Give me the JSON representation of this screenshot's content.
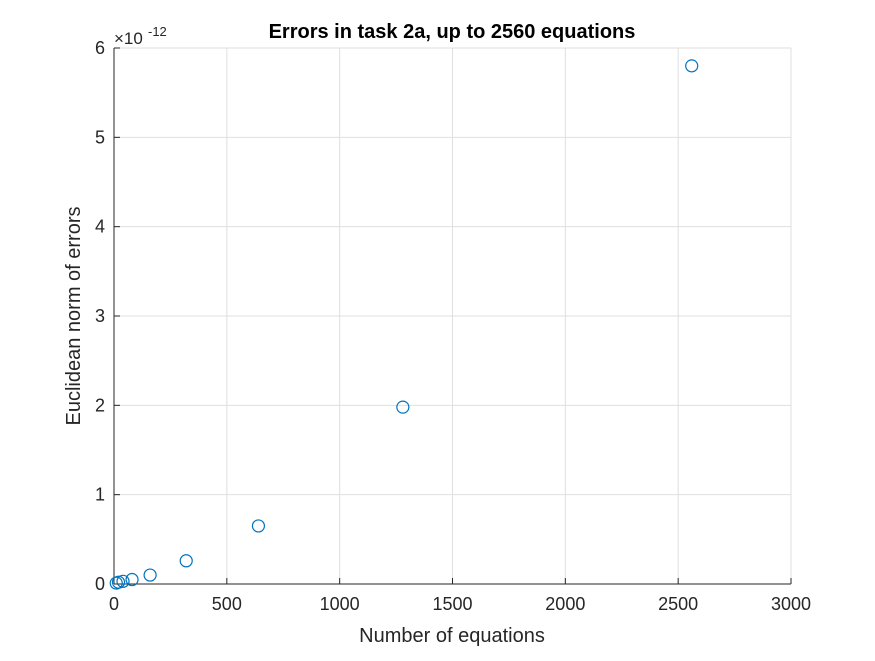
{
  "chart_data": {
    "type": "scatter",
    "title": "Errors in task 2a, up to 2560 equations",
    "xlabel": "Number of equations",
    "ylabel": "Euclidean norm of errors",
    "y_exponent_label": "×10",
    "y_exponent_power": "-12",
    "xlim": [
      0,
      3000
    ],
    "ylim": [
      0,
      6
    ],
    "xticks": [
      0,
      500,
      1000,
      1500,
      2000,
      2500,
      3000
    ],
    "xtick_labels": [
      "0",
      "500",
      "1000",
      "1500",
      "2000",
      "2500",
      "3000"
    ],
    "yticks": [
      0,
      1,
      2,
      3,
      4,
      5,
      6
    ],
    "ytick_labels": [
      "0",
      "1",
      "2",
      "3",
      "4",
      "5",
      "6"
    ],
    "grid": true,
    "marker": "open-circle",
    "series_color": "#0072BD",
    "series": [
      {
        "x": [
          10,
          20,
          40,
          80,
          160,
          320,
          640,
          1280,
          2560
        ],
        "y": [
          0.01,
          0.02,
          0.03,
          0.05,
          0.1,
          0.26,
          0.65,
          1.98,
          5.8
        ]
      }
    ]
  }
}
